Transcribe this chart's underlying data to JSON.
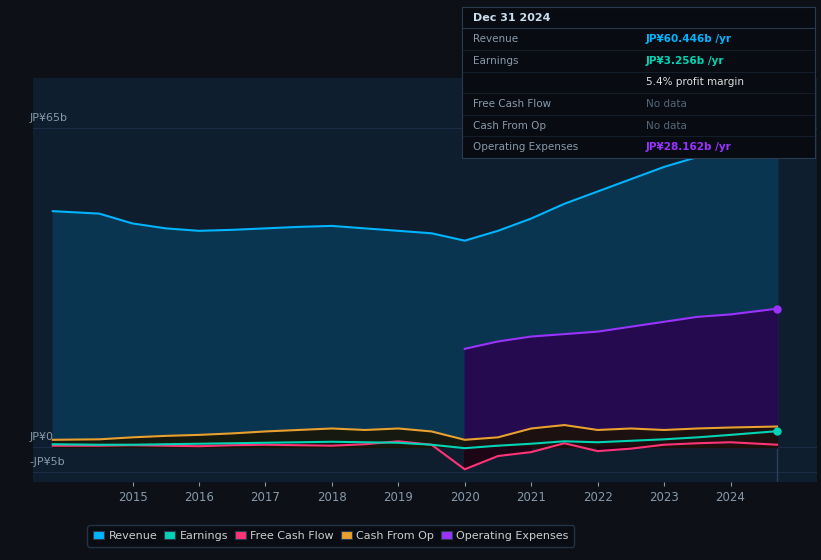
{
  "bg_color": "#0d1117",
  "plot_bg_color": "#0e1e2e",
  "grid_color": "#1a2d45",
  "years_raw": [
    2013.8,
    2014.5,
    2015.0,
    2015.5,
    2016.0,
    2016.5,
    2017.0,
    2017.5,
    2018.0,
    2018.5,
    2019.0,
    2019.5,
    2020.0,
    2020.5,
    2021.0,
    2021.5,
    2022.0,
    2022.5,
    2023.0,
    2023.5,
    2024.0,
    2024.7
  ],
  "revenue": [
    48,
    47.5,
    45.5,
    44.5,
    44.0,
    44.2,
    44.5,
    44.8,
    45.0,
    44.5,
    44.0,
    43.5,
    42.0,
    44.0,
    46.5,
    49.5,
    52.0,
    54.5,
    57.0,
    59.0,
    61.5,
    60.4
  ],
  "earnings": [
    0.6,
    0.5,
    0.5,
    0.6,
    0.7,
    0.8,
    0.9,
    1.0,
    1.1,
    1.0,
    0.9,
    0.5,
    -0.2,
    0.3,
    0.7,
    1.2,
    1.0,
    1.3,
    1.6,
    2.0,
    2.5,
    3.256
  ],
  "free_cash_flow": [
    0.3,
    0.3,
    0.4,
    0.3,
    0.2,
    0.4,
    0.5,
    0.4,
    0.3,
    0.6,
    1.2,
    0.5,
    -4.5,
    -1.8,
    -1.0,
    0.8,
    -0.8,
    -0.3,
    0.5,
    0.8,
    1.0,
    0.5
  ],
  "cash_from_op": [
    1.5,
    1.6,
    2.0,
    2.3,
    2.5,
    2.8,
    3.2,
    3.5,
    3.8,
    3.5,
    3.8,
    3.2,
    1.5,
    2.0,
    3.8,
    4.5,
    3.5,
    3.8,
    3.5,
    3.8,
    4.0,
    4.2
  ],
  "opex_start_year": 2020.0,
  "operating_expenses": [
    20.0,
    21.5,
    22.5,
    23.0,
    23.5,
    24.5,
    25.5,
    26.5,
    27.0,
    28.162
  ],
  "opex_years": [
    2020.0,
    2020.5,
    2021.0,
    2021.5,
    2022.0,
    2022.5,
    2023.0,
    2023.5,
    2024.0,
    2024.7
  ],
  "revenue_color": "#00b4ff",
  "earnings_color": "#00d4b4",
  "free_cash_flow_color": "#ff3377",
  "cash_from_op_color": "#e8a030",
  "operating_expenses_color": "#9933ff",
  "revenue_fill_color": "#0a3550",
  "cash_from_op_fill_color": "#1a1200",
  "opex_fill_color": "#250a50",
  "fcf_neg_fill_color": "#200010",
  "ylim_min": -7,
  "ylim_max": 75,
  "xlim_min": 2013.5,
  "xlim_max": 2025.3,
  "xticks": [
    2015,
    2016,
    2017,
    2018,
    2019,
    2020,
    2021,
    2022,
    2023,
    2024
  ],
  "ytick_positions": [
    65,
    0,
    -5
  ],
  "ytick_labels": [
    "JP¥65b",
    "JP¥0",
    "-JP¥5b"
  ],
  "tooltip_title": "Dec 31 2024",
  "tooltip_revenue_label": "Revenue",
  "tooltip_revenue_value": "JP¥60.446b /yr",
  "tooltip_earnings_label": "Earnings",
  "tooltip_earnings_value": "JP¥3.256b /yr",
  "tooltip_margin": "5.4% profit margin",
  "tooltip_fcf_label": "Free Cash Flow",
  "tooltip_fcf_value": "No data",
  "tooltip_cfop_label": "Cash From Op",
  "tooltip_cfop_value": "No data",
  "tooltip_opex_label": "Operating Expenses",
  "tooltip_opex_value": "JP¥28.162b /yr",
  "legend_items": [
    "Revenue",
    "Earnings",
    "Free Cash Flow",
    "Cash From Op",
    "Operating Expenses"
  ],
  "legend_colors": [
    "#00b4ff",
    "#00d4b4",
    "#ff3377",
    "#e8a030",
    "#9933ff"
  ]
}
